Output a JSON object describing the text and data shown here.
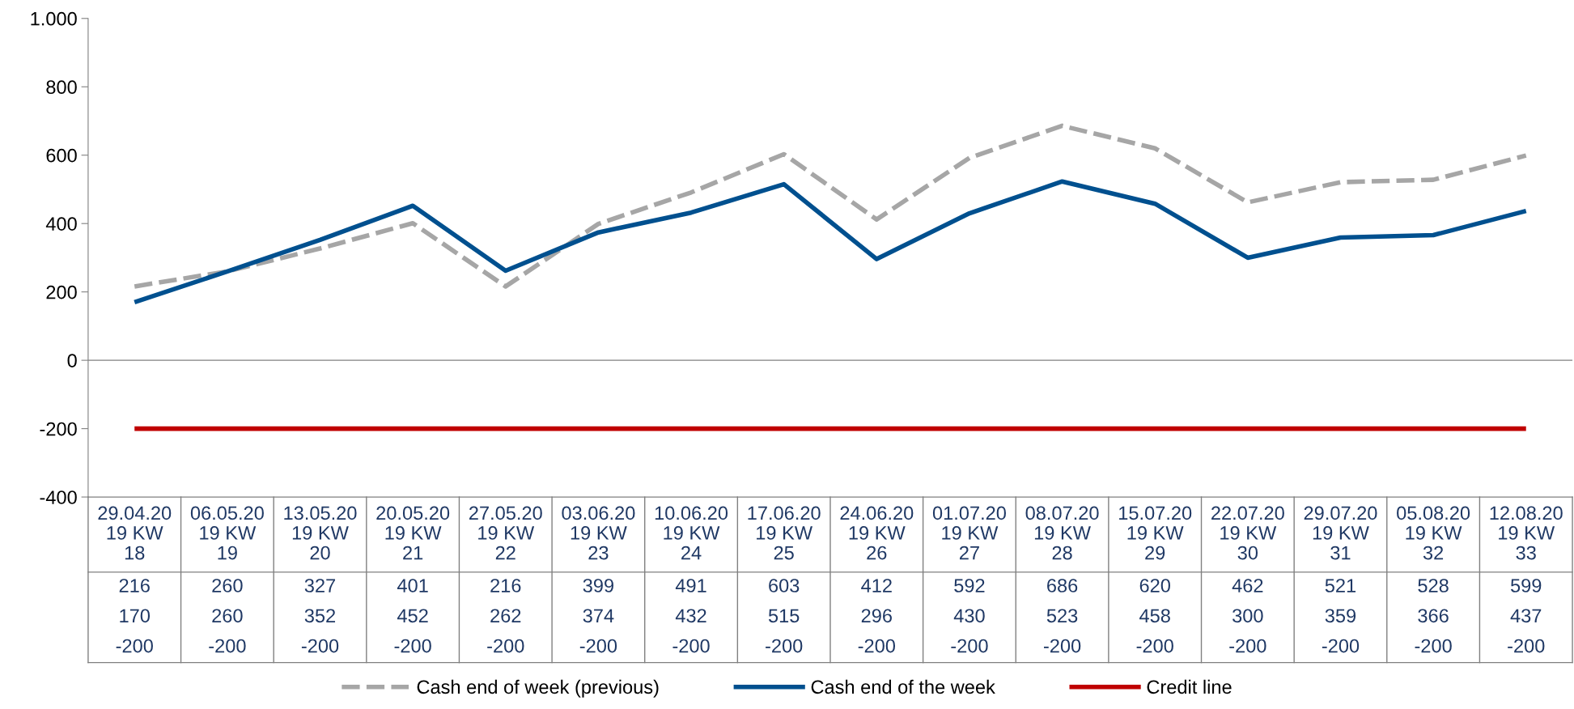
{
  "chart_data": {
    "type": "line",
    "categories": [
      "29.04.20\n19 KW\n18",
      "06.05.20\n19 KW\n19",
      "13.05.20\n19 KW\n20",
      "20.05.20\n19 KW\n21",
      "27.05.20\n19 KW\n22",
      "03.06.20\n19 KW\n23",
      "10.06.20\n19 KW\n24",
      "17.06.20\n19 KW\n25",
      "24.06.20\n19 KW\n26",
      "01.07.20\n19 KW\n27",
      "08.07.20\n19 KW\n28",
      "15.07.20\n19 KW\n29",
      "22.07.20\n19 KW\n30",
      "29.07.20\n19 KW\n31",
      "05.08.20\n19 KW\n32",
      "12.08.20\n19 KW\n33"
    ],
    "series": [
      {
        "name": "Cash end of week (previous)",
        "color": "#a6a6a6",
        "line_style": "dashed",
        "values": [
          216,
          260,
          327,
          401,
          216,
          399,
          491,
          603,
          412,
          592,
          686,
          620,
          462,
          521,
          528,
          599
        ]
      },
      {
        "name": "Cash end of the week",
        "color": "#00508f",
        "line_style": "solid",
        "values": [
          170,
          260,
          352,
          452,
          262,
          374,
          432,
          515,
          296,
          430,
          523,
          458,
          300,
          359,
          366,
          437
        ]
      },
      {
        "name": "Credit line",
        "color": "#c00000",
        "line_style": "solid",
        "values": [
          -200,
          -200,
          -200,
          -200,
          -200,
          -200,
          -200,
          -200,
          -200,
          -200,
          -200,
          -200,
          -200,
          -200,
          -200,
          -200
        ]
      }
    ],
    "ylim": [
      -400,
      1000
    ],
    "yticks": [
      -400,
      -200,
      0,
      200,
      400,
      600,
      800,
      {
        "value": 1000,
        "label": "1.000"
      }
    ],
    "ref_lines": [
      {
        "axis": "y",
        "value": 0,
        "color": "#808080"
      }
    ],
    "data_labels": true,
    "grid": false,
    "legend": "bottom",
    "marker": "none"
  }
}
